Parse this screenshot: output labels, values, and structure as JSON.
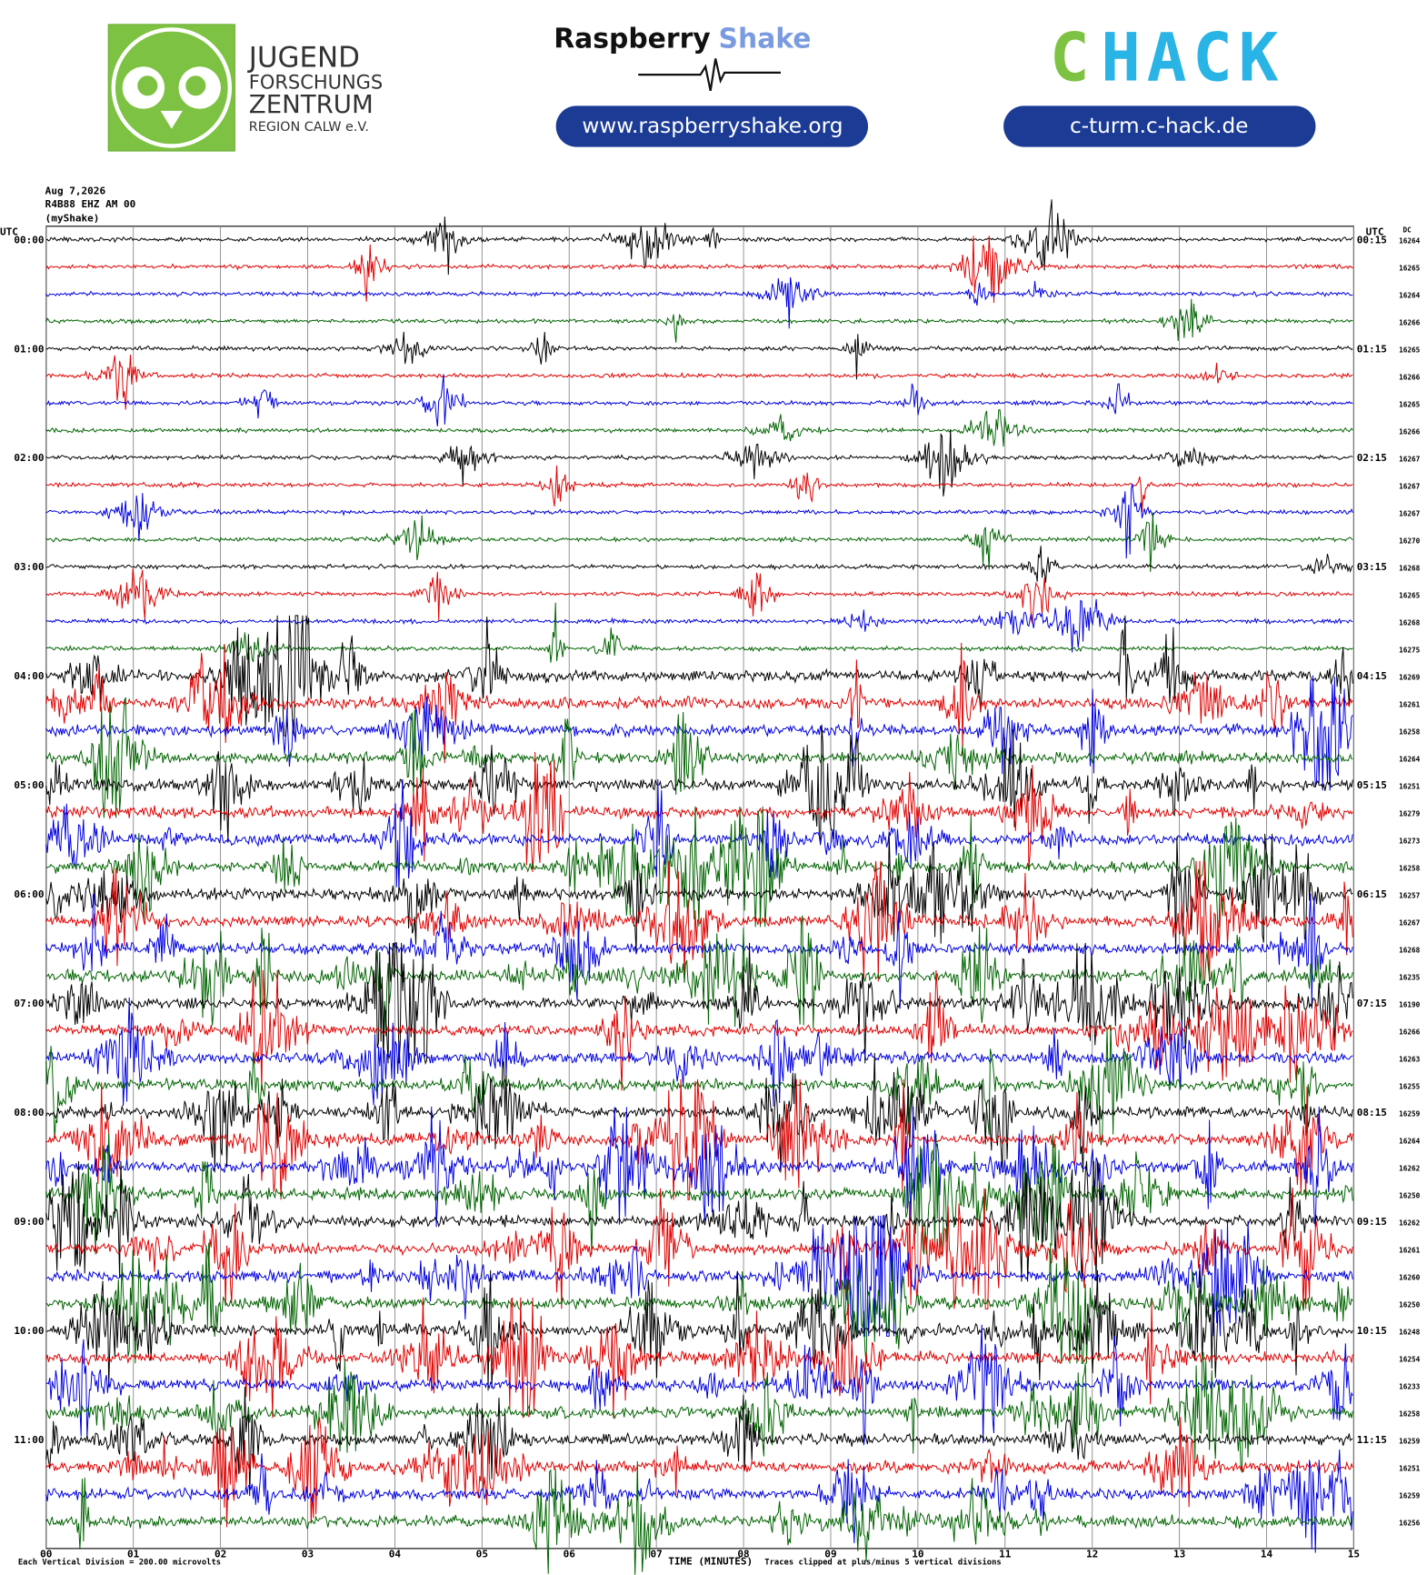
{
  "header": {
    "jfz": {
      "lines": [
        "JUGEND",
        "FORSCHUNGS",
        "ZENTRUM",
        "REGION CALW e.V."
      ]
    },
    "raspberry": {
      "word1": "Raspberry",
      "word2": "Shake",
      "url": "www.raspberryshake.org"
    },
    "chack": {
      "c": "C",
      "hack": "HACK",
      "url": "c-turm.c-hack.de"
    }
  },
  "chart_data": {
    "type": "helicorder",
    "date": "Aug 7,2026",
    "station": "R4B88 EHZ AM 00",
    "network": "(myShake)",
    "left_axis_label": "UTC",
    "right_axis_label": "UTC",
    "dc_label": "DC",
    "left_times": [
      "00:00",
      "01:00",
      "02:00",
      "03:00",
      "04:00",
      "05:00",
      "06:00",
      "07:00",
      "08:00",
      "09:00",
      "10:00",
      "11:00"
    ],
    "right_times": [
      "00:15",
      "01:15",
      "02:15",
      "03:15",
      "04:15",
      "05:15",
      "06:15",
      "07:15",
      "08:15",
      "09:15",
      "10:15",
      "11:15"
    ],
    "dc_values": [
      16264,
      16265,
      16264,
      16266,
      16265,
      16266,
      16265,
      16266,
      16267,
      16267,
      16267,
      16270,
      16268,
      16265,
      16268,
      16275,
      16269,
      16261,
      16258,
      16264,
      16251,
      16279,
      16273,
      16258,
      16257,
      16267,
      16268,
      16235,
      16190,
      16266,
      16263,
      16255,
      16259,
      16264,
      16262,
      16250,
      16262,
      16261,
      16260,
      16250,
      16248,
      16254,
      16233,
      16258,
      16259,
      16251,
      16259,
      16256
    ],
    "colors": [
      "#000000",
      "#e00000",
      "#0000e0",
      "#006400"
    ],
    "xlim": [
      0,
      15
    ],
    "xticks": [
      {
        "value": 0,
        "label": "00"
      },
      {
        "value": 1,
        "label": "01"
      },
      {
        "value": 2,
        "label": "02"
      },
      {
        "value": 3,
        "label": "03"
      },
      {
        "value": 4,
        "label": "04"
      },
      {
        "value": 5,
        "label": "05"
      },
      {
        "value": 6,
        "label": "06"
      },
      {
        "value": 7,
        "label": "07"
      },
      {
        "value": 8,
        "label": "08"
      },
      {
        "value": 9,
        "label": "09"
      },
      {
        "value": 10,
        "label": "10"
      },
      {
        "value": 11,
        "label": "11"
      },
      {
        "value": 12,
        "label": "12"
      },
      {
        "value": 13,
        "label": "13"
      },
      {
        "value": 14,
        "label": "14"
      },
      {
        "value": 15,
        "label": "15"
      }
    ],
    "grid": true,
    "xlabel": "TIME (MINUTES)",
    "scale_note": "Each Vertical Division =  200.00 microvolts",
    "clip_note": "Traces clipped at plus/minus 5 vertical divisions"
  }
}
